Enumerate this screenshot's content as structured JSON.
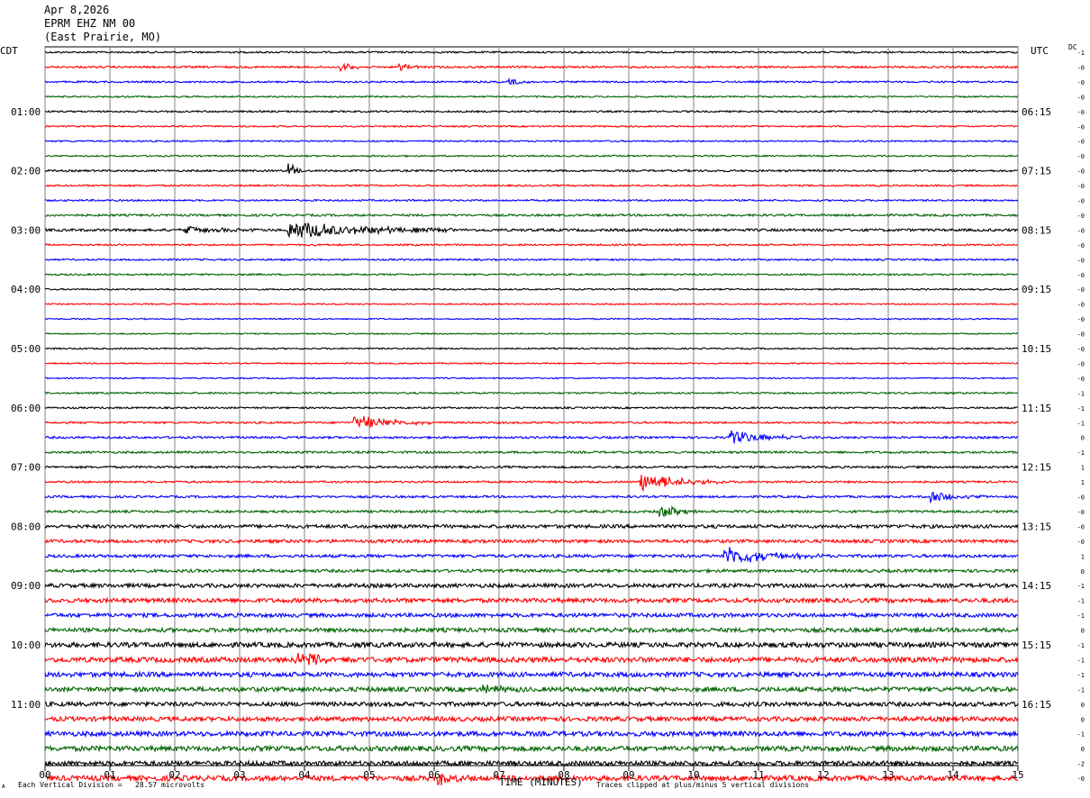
{
  "header": {
    "date": "Apr 8,2026",
    "station": "EPRM EHZ NM 00",
    "location": "(East Prairie, MO)"
  },
  "left_zone": "CDT",
  "right_zone": "UTC",
  "dc_label": "DC",
  "footer": {
    "scale_note": "Each Vertical Division =   28.57 microvolts",
    "clip_note": "Traces clipped at plus/minus 5 vertical divisions",
    "corner_mark": "A"
  },
  "chart_data": {
    "type": "line",
    "title": "",
    "xlabel": "TIME (MINUTES)",
    "ylabel": "",
    "xlim": [
      0,
      15
    ],
    "x_ticks": [
      "00",
      "01",
      "02",
      "03",
      "04",
      "05",
      "06",
      "07",
      "08",
      "09",
      "10",
      "11",
      "12",
      "13",
      "14",
      "15"
    ],
    "rows_per_hour": 4,
    "minutes_per_row": 15,
    "trace_colors": [
      "#000000",
      "#ff0000",
      "#0000ff",
      "#006400"
    ],
    "left_hour_labels": [
      "01:00",
      "02:00",
      "03:00",
      "04:00",
      "05:00",
      "06:00",
      "07:00",
      "08:00",
      "09:00",
      "10:00",
      "11:00"
    ],
    "right_hour_labels": [
      "06:15",
      "07:15",
      "08:15",
      "09:15",
      "10:15",
      "11:15",
      "12:15",
      "13:15",
      "14:15",
      "15:15",
      "16:15"
    ],
    "dc_offsets": [
      "-1",
      "-0",
      "-0",
      "-0",
      "-0",
      "-0",
      "-0",
      "-0",
      "-0",
      "-0",
      "-0",
      "-0",
      "-0",
      "-0",
      "-0",
      "-0",
      "-0",
      "-0",
      "-0",
      "-0",
      "-0",
      "-0",
      "-0",
      "-1",
      "-1",
      "-1",
      "0",
      "-1",
      "1",
      "1",
      "-0",
      "-0",
      "-0",
      "-0",
      "1",
      "0",
      "-1",
      "-1",
      "-1",
      "0",
      "-1",
      "-1",
      "-1",
      "-1",
      "0",
      "0",
      "-1",
      "0",
      "-2",
      "-0"
    ],
    "row_noise_levels": [
      0.8,
      0.9,
      0.8,
      0.7,
      0.8,
      0.7,
      0.7,
      0.7,
      0.9,
      0.8,
      0.8,
      1.0,
      1.2,
      0.8,
      0.8,
      0.8,
      0.7,
      0.6,
      0.6,
      0.6,
      0.7,
      0.6,
      0.6,
      0.8,
      0.8,
      0.9,
      1.0,
      1.0,
      1.0,
      0.9,
      1.0,
      1.1,
      1.6,
      1.5,
      1.4,
      1.4,
      1.8,
      2.0,
      1.8,
      1.9,
      2.3,
      2.4,
      2.2,
      2.1,
      2.0,
      2.1,
      2.2,
      2.3,
      2.2,
      2.4
    ],
    "events": [
      {
        "row": 1,
        "minute": 4.6,
        "amplitude": 5,
        "duration_min": 0.3
      },
      {
        "row": 1,
        "minute": 5.5,
        "amplitude": 4,
        "duration_min": 0.4
      },
      {
        "row": 2,
        "minute": 7.2,
        "amplitude": 4,
        "duration_min": 0.4
      },
      {
        "row": 8,
        "minute": 3.8,
        "amplitude": 8,
        "duration_min": 0.2
      },
      {
        "row": 12,
        "minute": 2.2,
        "amplitude": 4,
        "duration_min": 1.0
      },
      {
        "row": 12,
        "minute": 3.8,
        "amplitude": 10,
        "duration_min": 2.5
      },
      {
        "row": 25,
        "minute": 4.8,
        "amplitude": 8,
        "duration_min": 1.2
      },
      {
        "row": 26,
        "minute": 10.6,
        "amplitude": 7,
        "duration_min": 1.3
      },
      {
        "row": 29,
        "minute": 9.2,
        "amplitude": 10,
        "duration_min": 1.3
      },
      {
        "row": 30,
        "minute": 13.7,
        "amplitude": 6,
        "duration_min": 0.8
      },
      {
        "row": 31,
        "minute": 9.5,
        "amplitude": 7,
        "duration_min": 0.8
      },
      {
        "row": 34,
        "minute": 10.5,
        "amplitude": 10,
        "duration_min": 1.5
      },
      {
        "row": 41,
        "minute": 3.9,
        "amplitude": 9,
        "duration_min": 0.8
      },
      {
        "row": 43,
        "minute": 6.8,
        "amplitude": 6,
        "duration_min": 0.6
      },
      {
        "row": 49,
        "minute": 6.1,
        "amplitude": 7,
        "duration_min": 0.5
      }
    ]
  }
}
